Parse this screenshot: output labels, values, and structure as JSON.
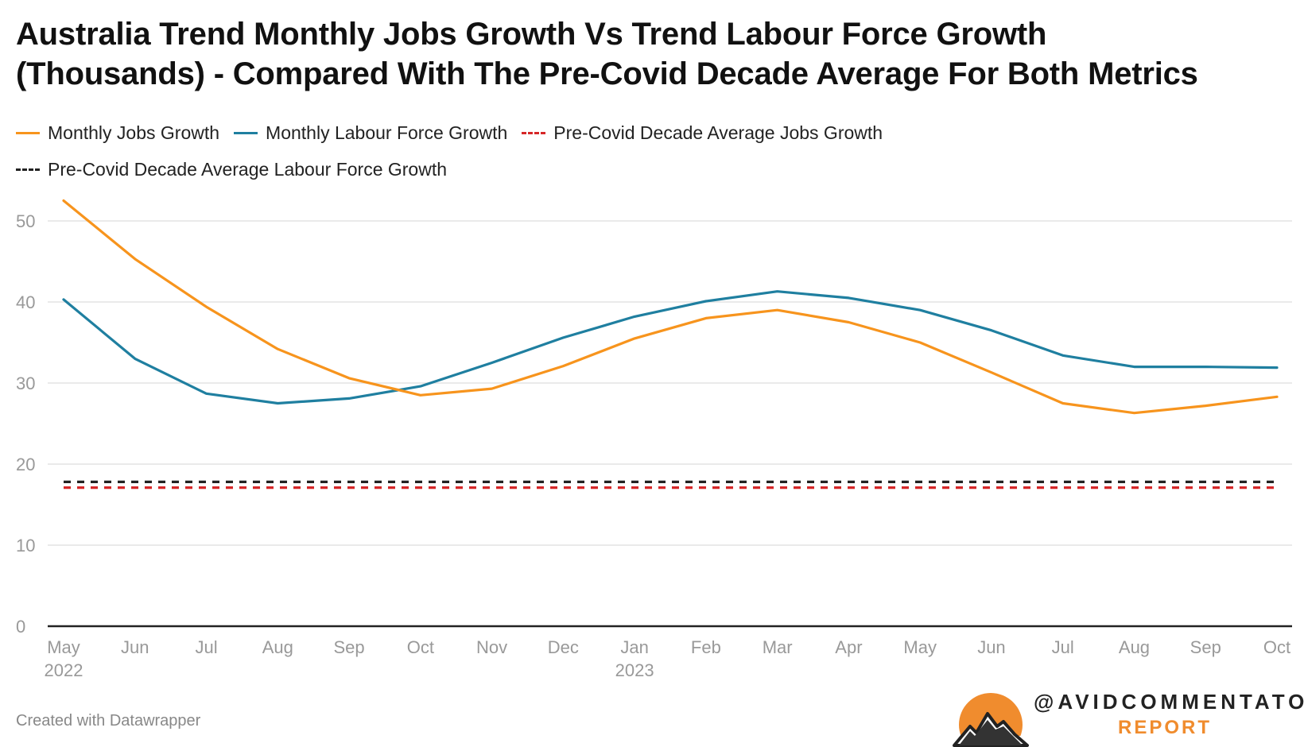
{
  "title_line1": "Australia Trend Monthly Jobs Growth Vs Trend Labour Force Growth",
  "title_line2": "(Thousands) - Compared With The Pre-Covid Decade Average For Both Metrics",
  "legend": [
    {
      "label": "Monthly Jobs Growth",
      "color": "#f7941d",
      "style": "solid"
    },
    {
      "label": "Monthly Labour Force Growth",
      "color": "#1f7fa0",
      "style": "solid"
    },
    {
      "label": "Pre-Covid Decade Average Jobs Growth",
      "color": "#d62728",
      "style": "dashed"
    },
    {
      "label": "Pre-Covid Decade Average Labour Force Growth",
      "color": "#222222",
      "style": "dashed"
    }
  ],
  "footer": "Created with Datawrapper",
  "logo": {
    "handle": "@AVIDCOMMENTATOR",
    "report": "REPORT",
    "sun_color": "#f08c2e"
  },
  "chart_data": {
    "type": "line",
    "title": "Australia Trend Monthly Jobs Growth Vs Trend Labour Force Growth (Thousands) - Compared With The Pre-Covid Decade Average For Both Metrics",
    "categories": [
      "May 2022",
      "Jun",
      "Jul",
      "Aug",
      "Sep",
      "Oct",
      "Nov",
      "Dec",
      "Jan 2023",
      "Feb",
      "Mar",
      "Apr",
      "May",
      "Jun",
      "Jul",
      "Aug",
      "Sep",
      "Oct"
    ],
    "x_tick_labels": [
      [
        "May",
        "2022"
      ],
      [
        "Jun"
      ],
      [
        "Jul"
      ],
      [
        "Aug"
      ],
      [
        "Sep"
      ],
      [
        "Oct"
      ],
      [
        "Nov"
      ],
      [
        "Dec"
      ],
      [
        "Jan",
        "2023"
      ],
      [
        "Feb"
      ],
      [
        "Mar"
      ],
      [
        "Apr"
      ],
      [
        "May"
      ],
      [
        "Jun"
      ],
      [
        "Jul"
      ],
      [
        "Aug"
      ],
      [
        "Sep"
      ],
      [
        "Oct"
      ]
    ],
    "series": [
      {
        "name": "Monthly Jobs Growth",
        "color": "#f7941d",
        "style": "solid",
        "values": [
          52.5,
          45.3,
          39.4,
          34.2,
          30.6,
          28.5,
          29.3,
          32.1,
          35.5,
          38.0,
          39.0,
          37.5,
          35.0,
          31.3,
          27.5,
          26.3,
          27.2,
          28.3
        ]
      },
      {
        "name": "Monthly Labour Force Growth",
        "color": "#1f7fa0",
        "style": "solid",
        "values": [
          40.3,
          33.0,
          28.7,
          27.5,
          28.1,
          29.6,
          32.5,
          35.6,
          38.2,
          40.1,
          41.3,
          40.5,
          39.0,
          36.5,
          33.4,
          32.0,
          32.0,
          31.9
        ]
      },
      {
        "name": "Pre-Covid Decade Average Jobs Growth",
        "color": "#d62728",
        "style": "dashed",
        "values": [
          17.1,
          17.1,
          17.1,
          17.1,
          17.1,
          17.1,
          17.1,
          17.1,
          17.1,
          17.1,
          17.1,
          17.1,
          17.1,
          17.1,
          17.1,
          17.1,
          17.1,
          17.1
        ]
      },
      {
        "name": "Pre-Covid Decade Average Labour Force Growth",
        "color": "#222222",
        "style": "dashed",
        "values": [
          17.8,
          17.8,
          17.8,
          17.8,
          17.8,
          17.8,
          17.8,
          17.8,
          17.8,
          17.8,
          17.8,
          17.8,
          17.8,
          17.8,
          17.8,
          17.8,
          17.8,
          17.8
        ]
      }
    ],
    "yticks": [
      0,
      10,
      20,
      30,
      40,
      50
    ],
    "ylim": [
      0,
      55
    ],
    "grid": true,
    "legend_position": "top"
  }
}
